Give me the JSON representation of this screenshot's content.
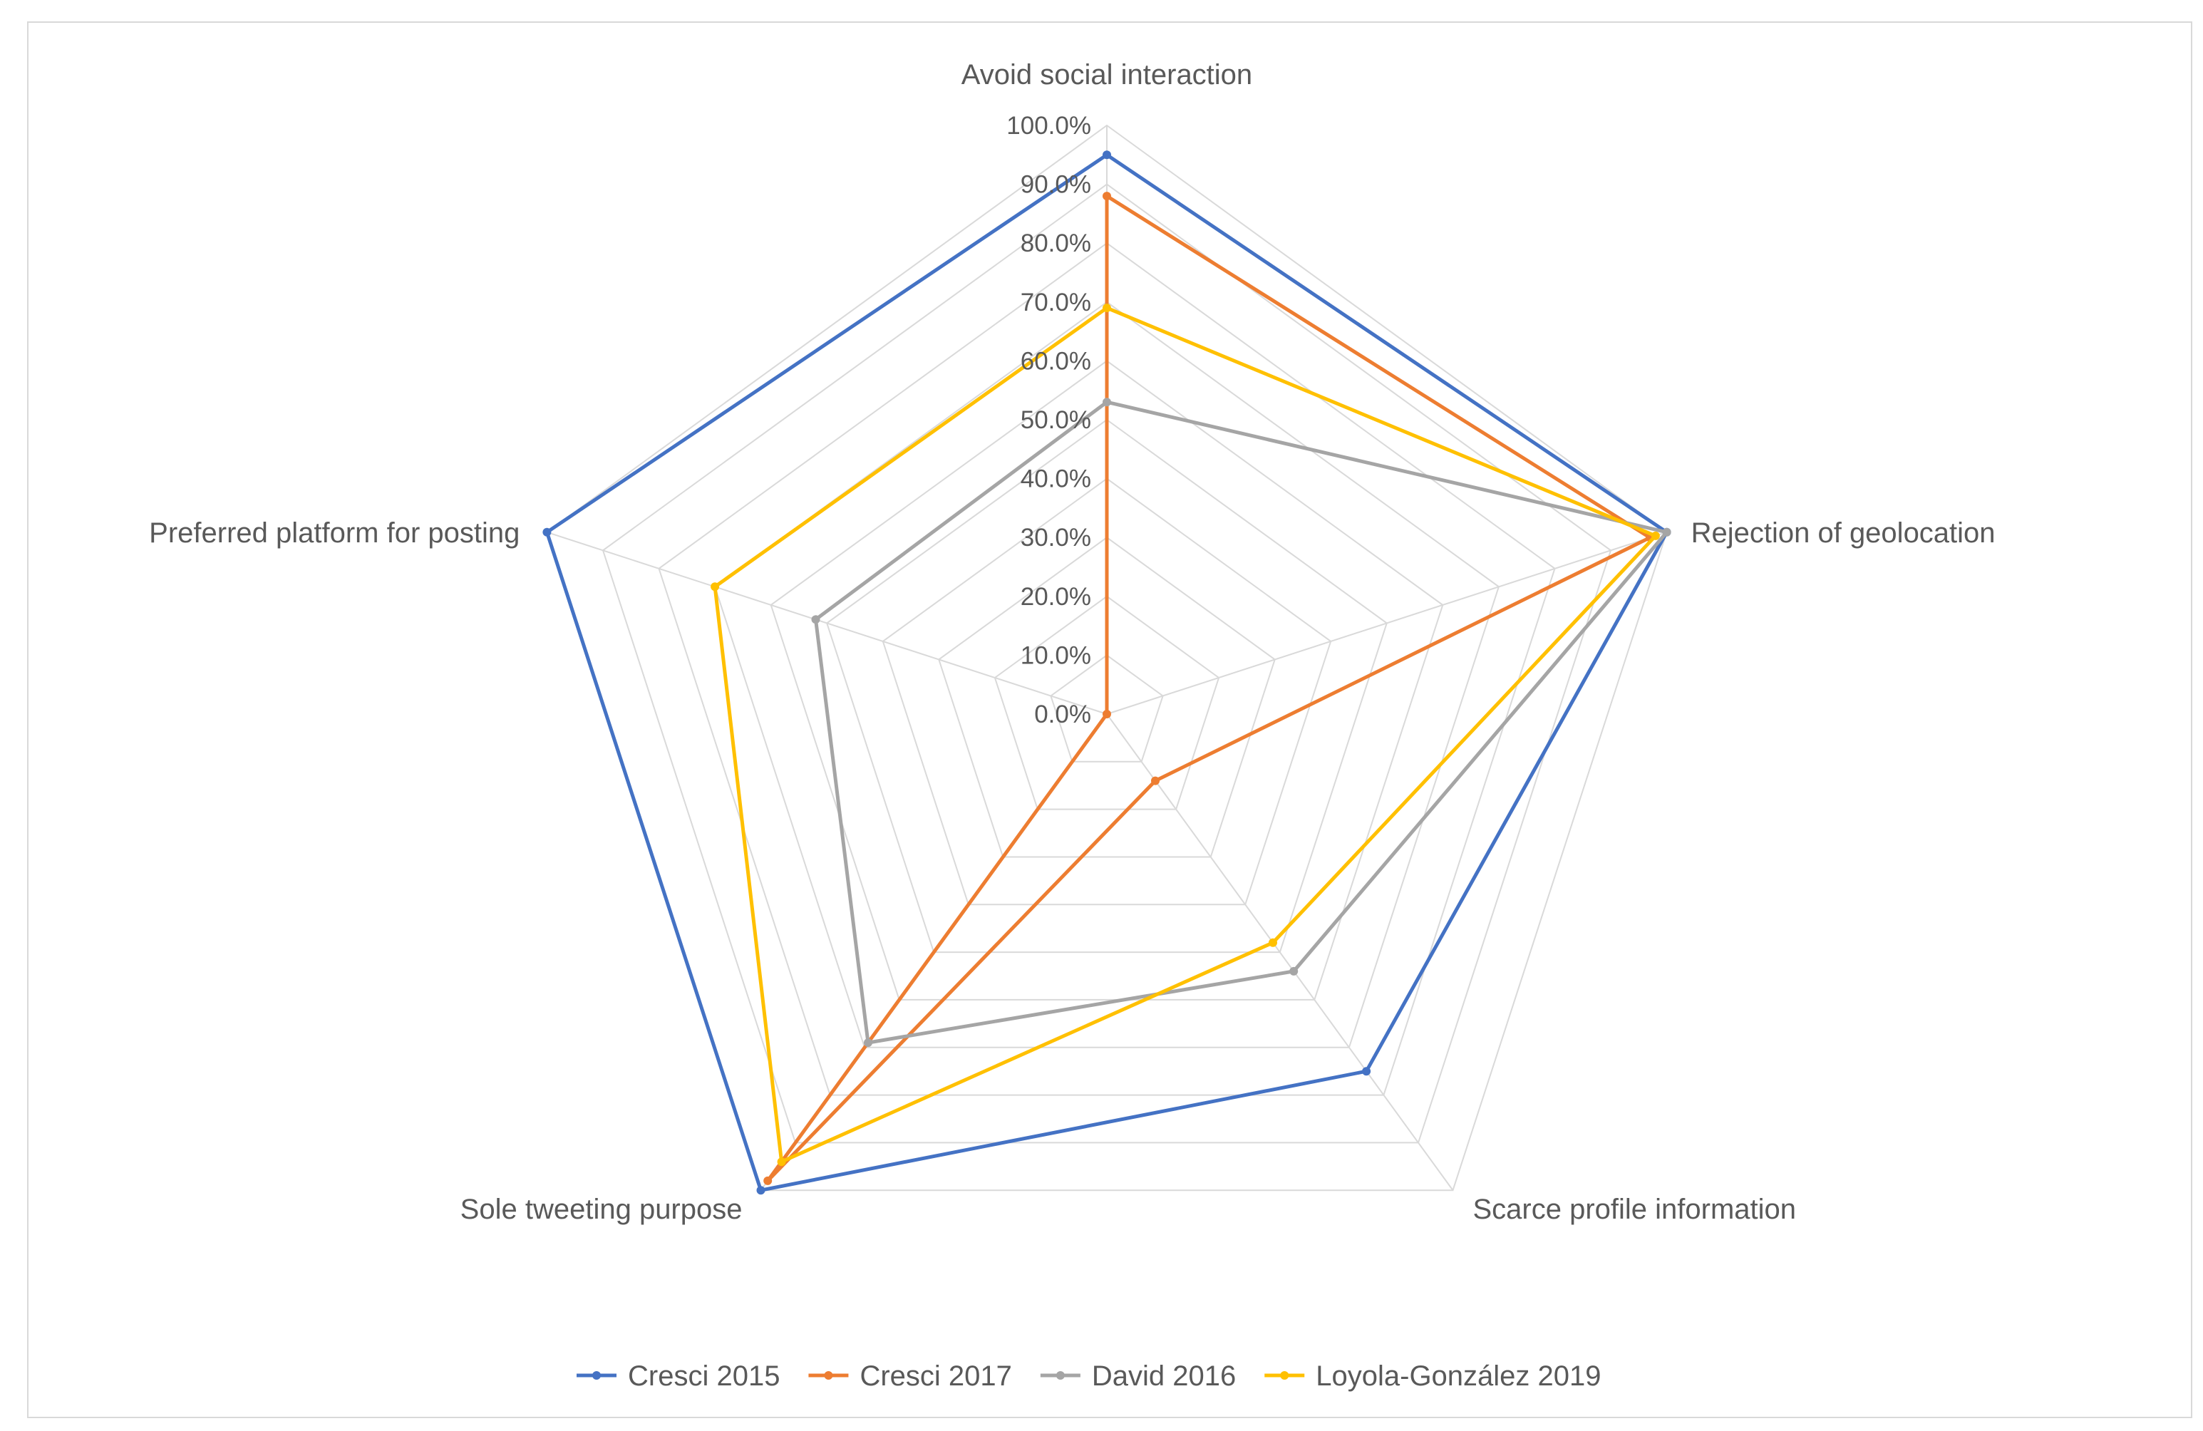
{
  "chart_data": {
    "type": "radar",
    "title": "",
    "categories": [
      "Avoid social interaction",
      "Rejection of geolocation",
      "Scarce profile information",
      "Sole tweeting purpose",
      "Preferred platform for posting"
    ],
    "radial_ticks": [
      "0.0%",
      "10.0%",
      "20.0%",
      "30.0%",
      "40.0%",
      "50.0%",
      "60.0%",
      "70.0%",
      "80.0%",
      "90.0%",
      "100.0%"
    ],
    "rlim": [
      0,
      100
    ],
    "grid": true,
    "legend_position": "bottom",
    "series": [
      {
        "name": "Cresci 2015",
        "color": "#4472c4",
        "values": [
          95,
          100,
          75,
          100,
          100
        ]
      },
      {
        "name": "Cresci 2017",
        "color": "#ed7d31",
        "values": [
          88,
          97,
          14,
          98,
          0
        ]
      },
      {
        "name": "David 2016",
        "color": "#a5a5a5",
        "values": [
          53,
          100,
          54,
          69,
          52
        ]
      },
      {
        "name": "Loyola-González 2019",
        "color": "#ffc000",
        "values": [
          69,
          98,
          48,
          94,
          70
        ]
      }
    ]
  }
}
